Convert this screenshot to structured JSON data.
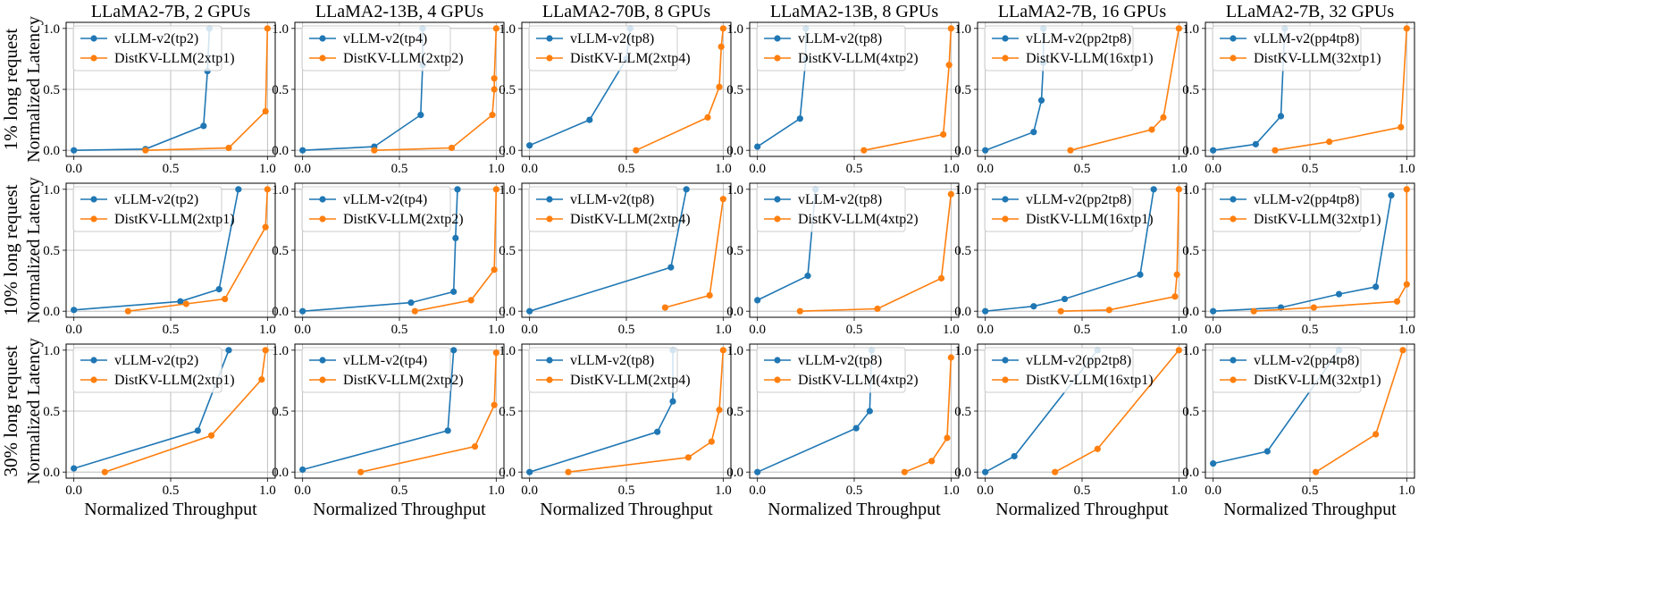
{
  "figure": {
    "colors": {
      "vllm": "#1f77b4",
      "distkv": "#ff7f0e",
      "grid": "#b0b0b0",
      "frame": "#000000"
    },
    "column_titles": [
      "LLaMA2-7B, 2 GPUs",
      "LLaMA2-13B, 4 GPUs",
      "LLaMA2-70B, 8 GPUs",
      "LLaMA2-13B, 8 GPUs",
      "LLaMA2-7B, 16 GPUs",
      "LLaMA2-7B, 32 GPUs"
    ],
    "row_labels": [
      "1% long request",
      "10% long request",
      "30% long request"
    ],
    "ylabel": "Normalized Latency",
    "xlabel": "Normalized Throughput",
    "x_ticks": [
      "0.0",
      "0.5",
      "1.0"
    ],
    "y_ticks": [
      "0.0",
      "0.5",
      "1.0"
    ]
  },
  "chart_data": [
    {
      "type": "line",
      "row_label": "1% long request",
      "title": "LLaMA2-7B, 2 GPUs",
      "xlabel": "",
      "ylabel": "Normalized Latency",
      "xlim": [
        -0.04,
        1.04
      ],
      "ylim": [
        -0.05,
        1.05
      ],
      "grid": true,
      "legend": "upper-left",
      "series": [
        {
          "name": "vLLM-v2(tp2)",
          "x": [
            0.0,
            0.37,
            0.67,
            0.69,
            0.7
          ],
          "y": [
            0.0,
            0.01,
            0.2,
            0.65,
            1.0
          ]
        },
        {
          "name": "DistKV-LLM(2xtp1)",
          "x": [
            0.37,
            0.8,
            0.99,
            1.0
          ],
          "y": [
            0.0,
            0.02,
            0.32,
            1.0
          ]
        }
      ]
    },
    {
      "type": "line",
      "row_label": "1% long request",
      "title": "LLaMA2-13B, 4 GPUs",
      "xlabel": "",
      "ylabel": "",
      "xlim": [
        -0.04,
        1.04
      ],
      "ylim": [
        -0.05,
        1.05
      ],
      "grid": true,
      "legend": "upper-left",
      "series": [
        {
          "name": "vLLM-v2(tp4)",
          "x": [
            0.0,
            0.37,
            0.61,
            0.62,
            0.62
          ],
          "y": [
            0.0,
            0.03,
            0.29,
            0.7,
            1.0
          ]
        },
        {
          "name": "DistKV-LLM(2xtp2)",
          "x": [
            0.37,
            0.77,
            0.98,
            0.99,
            0.99,
            1.0
          ],
          "y": [
            0.0,
            0.02,
            0.29,
            0.5,
            0.59,
            1.0
          ]
        }
      ]
    },
    {
      "type": "line",
      "row_label": "1% long request",
      "title": "LLaMA2-70B, 8 GPUs",
      "xlabel": "",
      "ylabel": "",
      "xlim": [
        -0.04,
        1.04
      ],
      "ylim": [
        -0.05,
        1.05
      ],
      "grid": true,
      "legend": "upper-left",
      "series": [
        {
          "name": "vLLM-v2(tp8)",
          "x": [
            0.0,
            0.31,
            0.5,
            0.52
          ],
          "y": [
            0.04,
            0.25,
            0.75,
            1.0
          ]
        },
        {
          "name": "DistKV-LLM(2xtp4)",
          "x": [
            0.55,
            0.92,
            0.98,
            0.99,
            1.0
          ],
          "y": [
            0.0,
            0.27,
            0.52,
            0.85,
            1.0
          ]
        }
      ]
    },
    {
      "type": "line",
      "row_label": "1% long request",
      "title": "LLaMA2-13B, 8 GPUs",
      "xlabel": "",
      "ylabel": "",
      "xlim": [
        -0.04,
        1.04
      ],
      "ylim": [
        -0.05,
        1.05
      ],
      "grid": true,
      "legend": "upper-left",
      "series": [
        {
          "name": "vLLM-v2(tp8)",
          "x": [
            0.0,
            0.22,
            0.25,
            0.25
          ],
          "y": [
            0.03,
            0.26,
            0.75,
            1.0
          ]
        },
        {
          "name": "DistKV-LLM(4xtp2)",
          "x": [
            0.55,
            0.96,
            0.99,
            1.0
          ],
          "y": [
            0.0,
            0.13,
            0.7,
            1.0
          ]
        }
      ]
    },
    {
      "type": "line",
      "row_label": "1% long request",
      "title": "LLaMA2-7B, 16 GPUs",
      "xlabel": "",
      "ylabel": "",
      "xlim": [
        -0.04,
        1.04
      ],
      "ylim": [
        -0.05,
        1.05
      ],
      "grid": true,
      "legend": "upper-left",
      "series": [
        {
          "name": "vLLM-v2(pp2tp8)",
          "x": [
            0.0,
            0.25,
            0.29,
            0.3,
            0.3
          ],
          "y": [
            0.0,
            0.15,
            0.41,
            0.72,
            1.0
          ]
        },
        {
          "name": "DistKV-LLM(16xtp1)",
          "x": [
            0.44,
            0.86,
            0.92,
            1.0
          ],
          "y": [
            0.0,
            0.17,
            0.27,
            1.0
          ]
        }
      ]
    },
    {
      "type": "line",
      "row_label": "1% long request",
      "title": "LLaMA2-7B, 32 GPUs",
      "xlabel": "",
      "ylabel": "",
      "xlim": [
        -0.04,
        1.04
      ],
      "ylim": [
        -0.05,
        1.05
      ],
      "grid": true,
      "legend": "upper-left",
      "series": [
        {
          "name": "vLLM-v2(pp4tp8)",
          "x": [
            0.0,
            0.22,
            0.35,
            0.37
          ],
          "y": [
            0.0,
            0.05,
            0.28,
            1.0
          ]
        },
        {
          "name": "DistKV-LLM(32xtp1)",
          "x": [
            0.32,
            0.6,
            0.97,
            1.0
          ],
          "y": [
            0.0,
            0.07,
            0.19,
            1.0
          ]
        }
      ]
    },
    {
      "type": "line",
      "row_label": "10% long request",
      "title": "",
      "xlabel": "",
      "ylabel": "Normalized Latency",
      "xlim": [
        -0.04,
        1.04
      ],
      "ylim": [
        -0.05,
        1.05
      ],
      "grid": true,
      "legend": "upper-left",
      "series": [
        {
          "name": "vLLM-v2(tp2)",
          "x": [
            0.0,
            0.55,
            0.75,
            0.85
          ],
          "y": [
            0.01,
            0.08,
            0.18,
            1.0
          ]
        },
        {
          "name": "DistKV-LLM(2xtp1)",
          "x": [
            0.28,
            0.58,
            0.78,
            0.99,
            1.0
          ],
          "y": [
            0.0,
            0.06,
            0.1,
            0.69,
            1.0
          ]
        }
      ]
    },
    {
      "type": "line",
      "row_label": "10% long request",
      "title": "",
      "xlabel": "",
      "ylabel": "",
      "xlim": [
        -0.04,
        1.04
      ],
      "ylim": [
        -0.05,
        1.05
      ],
      "grid": true,
      "legend": "upper-left",
      "series": [
        {
          "name": "vLLM-v2(tp4)",
          "x": [
            0.0,
            0.56,
            0.78,
            0.79,
            0.8
          ],
          "y": [
            0.0,
            0.07,
            0.16,
            0.6,
            1.0
          ]
        },
        {
          "name": "DistKV-LLM(2xtp2)",
          "x": [
            0.58,
            0.87,
            0.99,
            1.0
          ],
          "y": [
            0.0,
            0.09,
            0.34,
            1.0
          ]
        }
      ]
    },
    {
      "type": "line",
      "row_label": "10% long request",
      "title": "",
      "xlabel": "",
      "ylabel": "",
      "xlim": [
        -0.04,
        1.04
      ],
      "ylim": [
        -0.05,
        1.05
      ],
      "grid": true,
      "legend": "upper-left",
      "series": [
        {
          "name": "vLLM-v2(tp8)",
          "x": [
            0.0,
            0.73,
            0.81
          ],
          "y": [
            0.0,
            0.36,
            1.0
          ]
        },
        {
          "name": "DistKV-LLM(2xtp4)",
          "x": [
            0.7,
            0.93,
            1.0
          ],
          "y": [
            0.03,
            0.13,
            0.92
          ]
        }
      ]
    },
    {
      "type": "line",
      "row_label": "10% long request",
      "title": "",
      "xlabel": "",
      "ylabel": "",
      "xlim": [
        -0.04,
        1.04
      ],
      "ylim": [
        -0.05,
        1.05
      ],
      "grid": true,
      "legend": "upper-left",
      "series": [
        {
          "name": "vLLM-v2(tp8)",
          "x": [
            0.0,
            0.26,
            0.3
          ],
          "y": [
            0.09,
            0.29,
            1.0
          ]
        },
        {
          "name": "DistKV-LLM(4xtp2)",
          "x": [
            0.22,
            0.62,
            0.95,
            1.0
          ],
          "y": [
            0.0,
            0.02,
            0.27,
            0.96
          ]
        }
      ]
    },
    {
      "type": "line",
      "row_label": "10% long request",
      "title": "",
      "xlabel": "",
      "ylabel": "",
      "xlim": [
        -0.04,
        1.04
      ],
      "ylim": [
        -0.05,
        1.05
      ],
      "grid": true,
      "legend": "upper-left",
      "series": [
        {
          "name": "vLLM-v2(pp2tp8)",
          "x": [
            0.0,
            0.25,
            0.41,
            0.8,
            0.87
          ],
          "y": [
            0.0,
            0.04,
            0.1,
            0.3,
            1.0
          ]
        },
        {
          "name": "DistKV-LLM(16xtp1)",
          "x": [
            0.39,
            0.64,
            0.98,
            0.99,
            1.0
          ],
          "y": [
            0.0,
            0.01,
            0.12,
            0.3,
            1.0
          ]
        }
      ]
    },
    {
      "type": "line",
      "row_label": "10% long request",
      "title": "",
      "xlabel": "",
      "ylabel": "",
      "xlim": [
        -0.04,
        1.04
      ],
      "ylim": [
        -0.05,
        1.05
      ],
      "grid": true,
      "legend": "upper-left",
      "series": [
        {
          "name": "vLLM-v2(pp4tp8)",
          "x": [
            0.0,
            0.35,
            0.65,
            0.84,
            0.92
          ],
          "y": [
            0.0,
            0.03,
            0.14,
            0.2,
            0.95
          ]
        },
        {
          "name": "DistKV-LLM(32xtp1)",
          "x": [
            0.21,
            0.52,
            0.95,
            1.0,
            1.0
          ],
          "y": [
            0.0,
            0.03,
            0.08,
            0.22,
            1.0
          ]
        }
      ]
    },
    {
      "type": "line",
      "row_label": "30% long request",
      "title": "",
      "xlabel": "Normalized Throughput",
      "ylabel": "Normalized Latency",
      "xlim": [
        -0.04,
        1.04
      ],
      "ylim": [
        -0.05,
        1.05
      ],
      "grid": true,
      "legend": "upper-left",
      "series": [
        {
          "name": "vLLM-v2(tp2)",
          "x": [
            0.0,
            0.64,
            0.8
          ],
          "y": [
            0.03,
            0.34,
            1.0
          ]
        },
        {
          "name": "DistKV-LLM(2xtp1)",
          "x": [
            0.16,
            0.71,
            0.97,
            0.99
          ],
          "y": [
            0.0,
            0.3,
            0.76,
            1.0
          ]
        }
      ]
    },
    {
      "type": "line",
      "row_label": "30% long request",
      "title": "",
      "xlabel": "Normalized Throughput",
      "ylabel": "",
      "xlim": [
        -0.04,
        1.04
      ],
      "ylim": [
        -0.05,
        1.05
      ],
      "grid": true,
      "legend": "upper-left",
      "series": [
        {
          "name": "vLLM-v2(tp4)",
          "x": [
            0.0,
            0.75,
            0.78
          ],
          "y": [
            0.02,
            0.34,
            1.0
          ]
        },
        {
          "name": "DistKV-LLM(2xtp2)",
          "x": [
            0.3,
            0.89,
            0.99,
            1.0
          ],
          "y": [
            0.0,
            0.21,
            0.55,
            0.98
          ]
        }
      ]
    },
    {
      "type": "line",
      "row_label": "30% long request",
      "title": "",
      "xlabel": "Normalized Throughput",
      "ylabel": "",
      "xlim": [
        -0.04,
        1.04
      ],
      "ylim": [
        -0.05,
        1.05
      ],
      "grid": true,
      "legend": "upper-left",
      "series": [
        {
          "name": "vLLM-v2(tp8)",
          "x": [
            0.0,
            0.66,
            0.74,
            0.74
          ],
          "y": [
            0.0,
            0.33,
            0.58,
            1.0
          ]
        },
        {
          "name": "DistKV-LLM(2xtp4)",
          "x": [
            0.2,
            0.82,
            0.94,
            0.98,
            1.0
          ],
          "y": [
            0.0,
            0.12,
            0.25,
            0.51,
            1.0
          ]
        }
      ]
    },
    {
      "type": "line",
      "row_label": "30% long request",
      "title": "",
      "xlabel": "Normalized Throughput",
      "ylabel": "",
      "xlim": [
        -0.04,
        1.04
      ],
      "ylim": [
        -0.05,
        1.05
      ],
      "grid": true,
      "legend": "upper-left",
      "series": [
        {
          "name": "vLLM-v2(tp8)",
          "x": [
            0.0,
            0.51,
            0.58,
            0.59
          ],
          "y": [
            0.0,
            0.36,
            0.5,
            1.0
          ]
        },
        {
          "name": "DistKV-LLM(4xtp2)",
          "x": [
            0.76,
            0.9,
            0.98,
            1.0
          ],
          "y": [
            0.0,
            0.09,
            0.28,
            0.94
          ]
        }
      ]
    },
    {
      "type": "line",
      "row_label": "30% long request",
      "title": "",
      "xlabel": "Normalized Throughput",
      "ylabel": "",
      "xlim": [
        -0.04,
        1.04
      ],
      "ylim": [
        -0.05,
        1.05
      ],
      "grid": true,
      "legend": "upper-left",
      "series": [
        {
          "name": "vLLM-v2(pp2tp8)",
          "x": [
            0.0,
            0.15,
            0.58
          ],
          "y": [
            0.0,
            0.13,
            1.0
          ]
        },
        {
          "name": "DistKV-LLM(16xtp1)",
          "x": [
            0.36,
            0.58,
            1.0
          ],
          "y": [
            0.0,
            0.19,
            1.0
          ]
        }
      ]
    },
    {
      "type": "line",
      "row_label": "30% long request",
      "title": "",
      "xlabel": "Normalized Throughput",
      "ylabel": "",
      "xlim": [
        -0.04,
        1.04
      ],
      "ylim": [
        -0.05,
        1.05
      ],
      "grid": true,
      "legend": "upper-left",
      "series": [
        {
          "name": "vLLM-v2(pp4tp8)",
          "x": [
            0.0,
            0.28,
            0.65
          ],
          "y": [
            0.07,
            0.17,
            1.0
          ]
        },
        {
          "name": "DistKV-LLM(32xtp1)",
          "x": [
            0.53,
            0.84,
            0.98
          ],
          "y": [
            0.0,
            0.31,
            1.0
          ]
        }
      ]
    }
  ]
}
